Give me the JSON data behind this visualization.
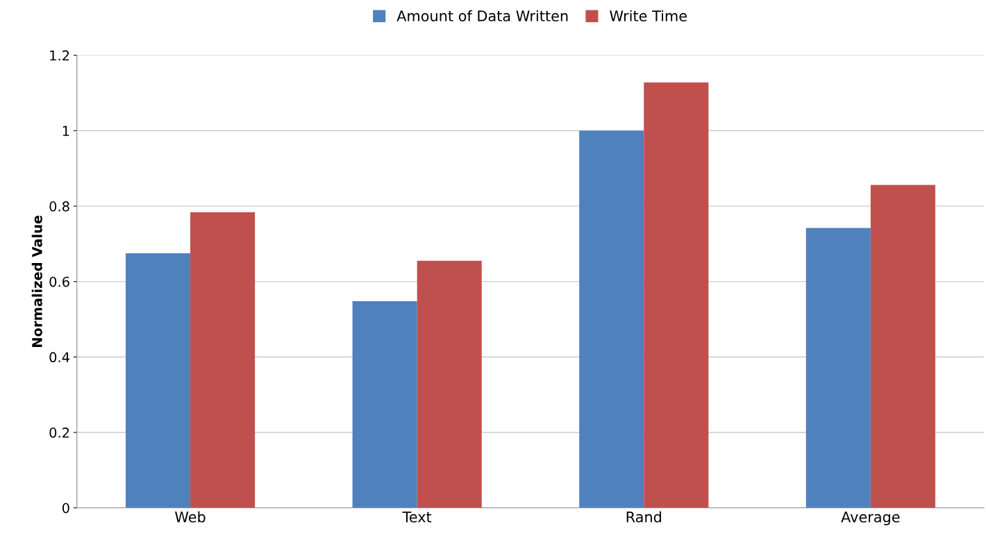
{
  "chart_data": {
    "type": "bar",
    "ylabel": "Normalized Value",
    "categories": [
      "Web",
      "Text",
      "Rand",
      "Average"
    ],
    "series": [
      {
        "name": "Amount of Data Written",
        "color": "#4f81bd",
        "values": [
          0.675,
          0.548,
          1.0,
          0.742
        ]
      },
      {
        "name": "Write Time",
        "color": "#c0504d",
        "values": [
          0.784,
          0.655,
          1.128,
          0.856
        ]
      }
    ],
    "ylim": [
      0,
      1.2
    ],
    "yticks": [
      0,
      0.2,
      0.4,
      0.6,
      0.8,
      1,
      1.2
    ],
    "grid": "y",
    "legend": "top"
  }
}
